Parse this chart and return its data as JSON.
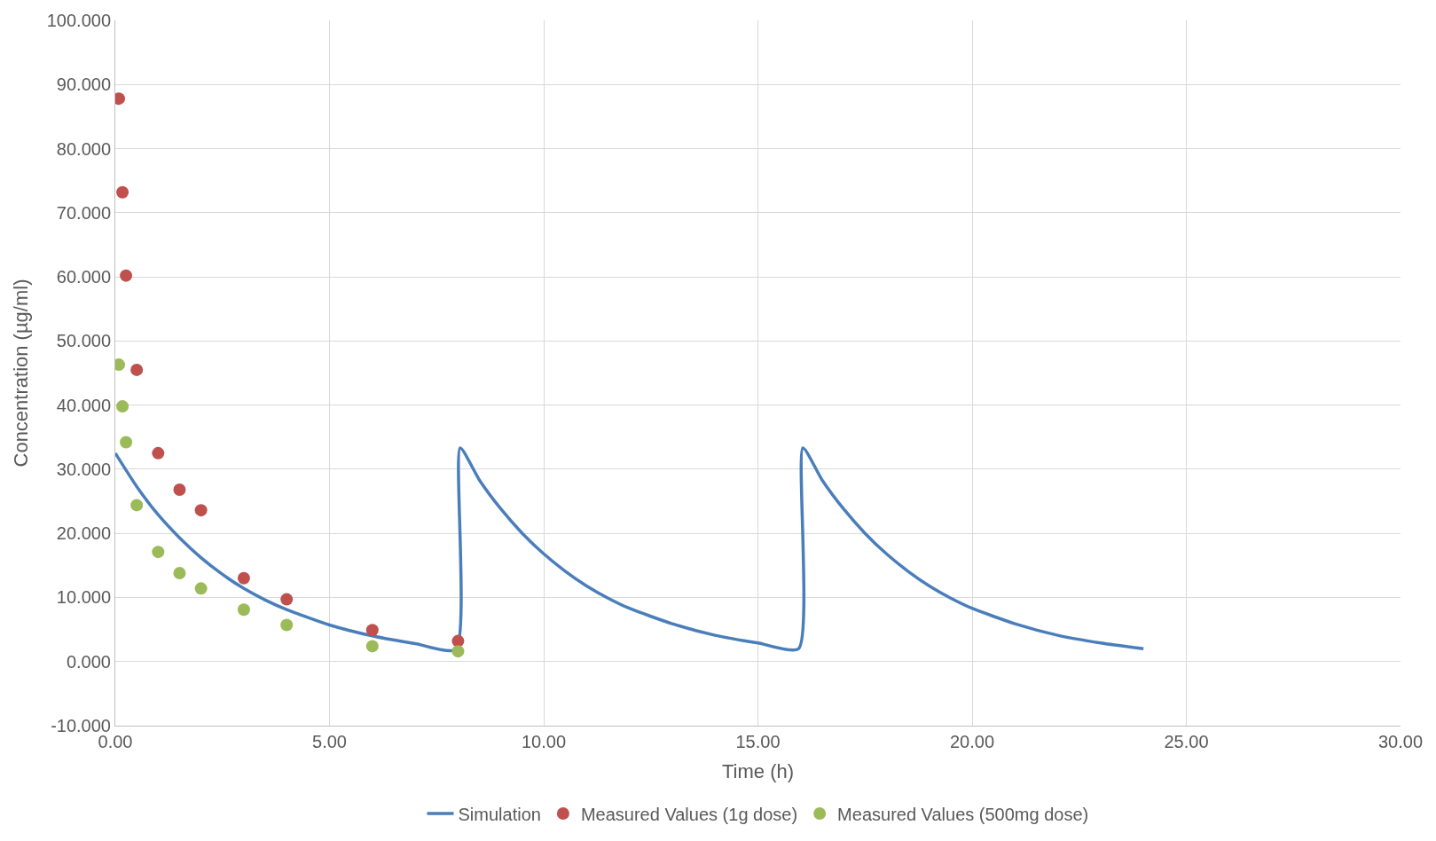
{
  "chart_data": {
    "type": "line",
    "xlabel": "Time (h)",
    "ylabel": "Concentration (µg/ml)",
    "xlim": [
      0,
      30
    ],
    "xticks": [
      {
        "value": 0,
        "label": "0.00"
      },
      {
        "value": 5,
        "label": "5.00"
      },
      {
        "value": 10,
        "label": "10.00"
      },
      {
        "value": 15,
        "label": "15.00"
      },
      {
        "value": 20,
        "label": "20.00"
      },
      {
        "value": 25,
        "label": "25.00"
      },
      {
        "value": 30,
        "label": "30.00"
      }
    ],
    "ylim": [
      -10,
      100
    ],
    "yticks": [
      {
        "value": -10,
        "label": "-10.000"
      },
      {
        "value": 0,
        "label": "0.000"
      },
      {
        "value": 10,
        "label": "10.000"
      },
      {
        "value": 20,
        "label": "20.000"
      },
      {
        "value": 30,
        "label": "30.000"
      },
      {
        "value": 40,
        "label": "40.000"
      },
      {
        "value": 50,
        "label": "50.000"
      },
      {
        "value": 60,
        "label": "60.000"
      },
      {
        "value": 70,
        "label": "70.000"
      },
      {
        "value": 80,
        "label": "80.000"
      },
      {
        "value": 90,
        "label": "90.000"
      },
      {
        "value": 100,
        "label": "100.000"
      }
    ],
    "grid": true,
    "legend": "bottom",
    "series": [
      {
        "name": "Simulation",
        "color": "#4a7ebb",
        "marker": "none",
        "x": [
          0,
          0.5,
          1,
          1.5,
          2,
          2.5,
          3,
          3.5,
          4,
          5,
          6,
          7,
          7.95,
          8.05,
          8.5,
          9,
          9.5,
          10,
          10.5,
          11,
          11.5,
          12,
          13,
          14,
          15,
          15.95,
          16.05,
          16.5,
          17,
          17.5,
          18,
          18.5,
          19,
          19.5,
          20,
          21,
          22,
          23,
          24
        ],
        "values": [
          32.5,
          27.3,
          22.9,
          19.3,
          16.2,
          13.6,
          11.4,
          9.6,
          8.1,
          5.7,
          4.0,
          2.8,
          1.9,
          33.3,
          28.3,
          23.8,
          20.0,
          16.8,
          14.1,
          11.8,
          9.9,
          8.3,
          5.9,
          4.1,
          2.9,
          2.0,
          33.3,
          28.3,
          23.8,
          20.0,
          16.8,
          14.1,
          11.8,
          9.9,
          8.3,
          5.9,
          4.1,
          2.9,
          2.0
        ]
      },
      {
        "name": "Measured Values (1g dose)",
        "type": "scatter",
        "color": "#c0504d",
        "marker": "circle",
        "x": [
          0.083,
          0.167,
          0.25,
          0.5,
          1,
          1.5,
          2,
          3,
          4,
          6,
          8
        ],
        "values": [
          87.8,
          73.2,
          60.2,
          45.5,
          32.5,
          26.8,
          23.6,
          13.0,
          9.7,
          4.9,
          3.2
        ]
      },
      {
        "name": "Measured Values (500mg dose)",
        "type": "scatter",
        "color": "#9bbb59",
        "marker": "circle",
        "x": [
          0.083,
          0.167,
          0.25,
          0.5,
          1,
          1.5,
          2,
          3,
          4,
          6,
          8
        ],
        "values": [
          46.3,
          39.8,
          34.2,
          24.4,
          17.1,
          13.8,
          11.4,
          8.1,
          5.7,
          2.4,
          1.6
        ]
      }
    ]
  }
}
